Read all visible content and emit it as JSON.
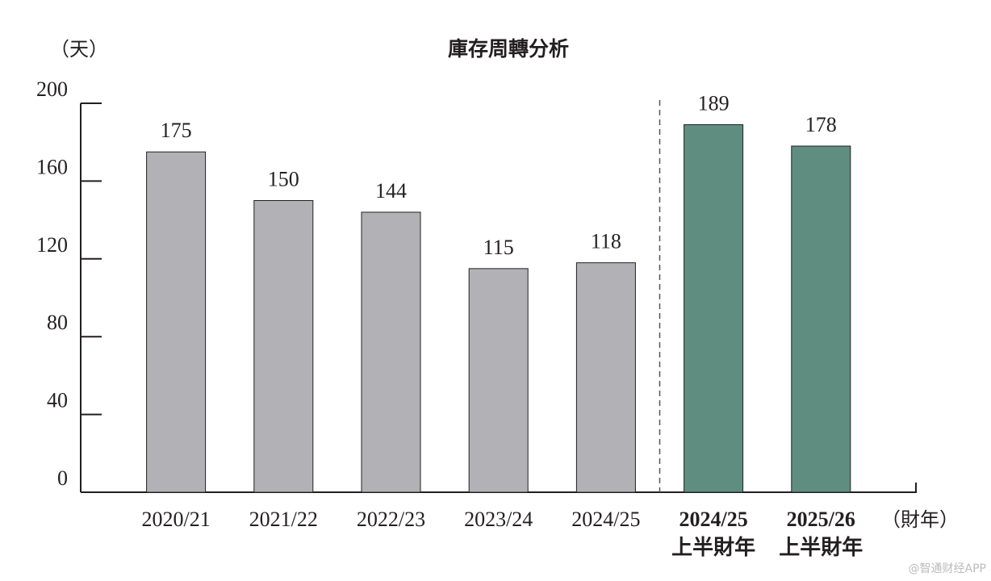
{
  "chart_data": {
    "type": "bar",
    "title": "庫存周轉分析",
    "y_label": "（天）",
    "x_label": "（財年）",
    "categories": [
      "2020/21",
      "2021/22",
      "2022/23",
      "2023/24",
      "2024/25",
      "2024/25\n上半財年",
      "2025/26\n上半財年"
    ],
    "values": [
      175,
      150,
      144,
      115,
      118,
      189,
      178
    ],
    "colors": [
      "#b2b1b6",
      "#b2b1b6",
      "#b2b1b6",
      "#b2b1b6",
      "#b2b1b6",
      "#5f8e81",
      "#5f8e81"
    ],
    "ylim": [
      0,
      200
    ],
    "yticks": [
      0,
      40,
      80,
      120,
      160,
      200
    ],
    "divider": true,
    "watermark": "@智通财经APP"
  }
}
